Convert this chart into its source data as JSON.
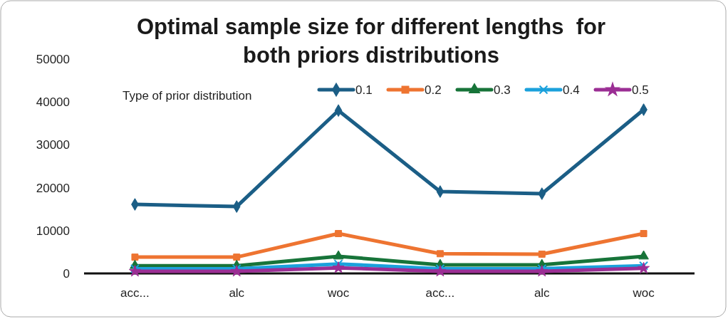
{
  "chart_data": {
    "type": "line",
    "title": "Optimal sample size for different lengths  for both priors distributions",
    "legend_title": "Type of prior distribution",
    "categories": [
      "acc...",
      "alc",
      "woc",
      "acc...",
      "alc",
      "woc"
    ],
    "series": [
      {
        "name": "0.1",
        "color": "#1b5e86",
        "marker": "diamond",
        "values": [
          16100,
          15600,
          38000,
          19100,
          18600,
          38200
        ]
      },
      {
        "name": "0.2",
        "color": "#ee7431",
        "marker": "square",
        "values": [
          3800,
          3800,
          9300,
          4600,
          4500,
          9300
        ]
      },
      {
        "name": "0.3",
        "color": "#177439",
        "marker": "triangle",
        "values": [
          1800,
          1800,
          4000,
          2000,
          2000,
          4000
        ]
      },
      {
        "name": "0.4",
        "color": "#1ba1dc",
        "marker": "cross",
        "values": [
          1100,
          1100,
          2200,
          1100,
          1100,
          1800
        ]
      },
      {
        "name": "0.5",
        "color": "#9b2e94",
        "marker": "star",
        "values": [
          500,
          500,
          1300,
          500,
          500,
          1200
        ]
      }
    ],
    "ylim": [
      0,
      50000
    ],
    "yticks": [
      0,
      10000,
      20000,
      30000,
      40000,
      50000
    ],
    "grid": false,
    "legend": "top right"
  }
}
